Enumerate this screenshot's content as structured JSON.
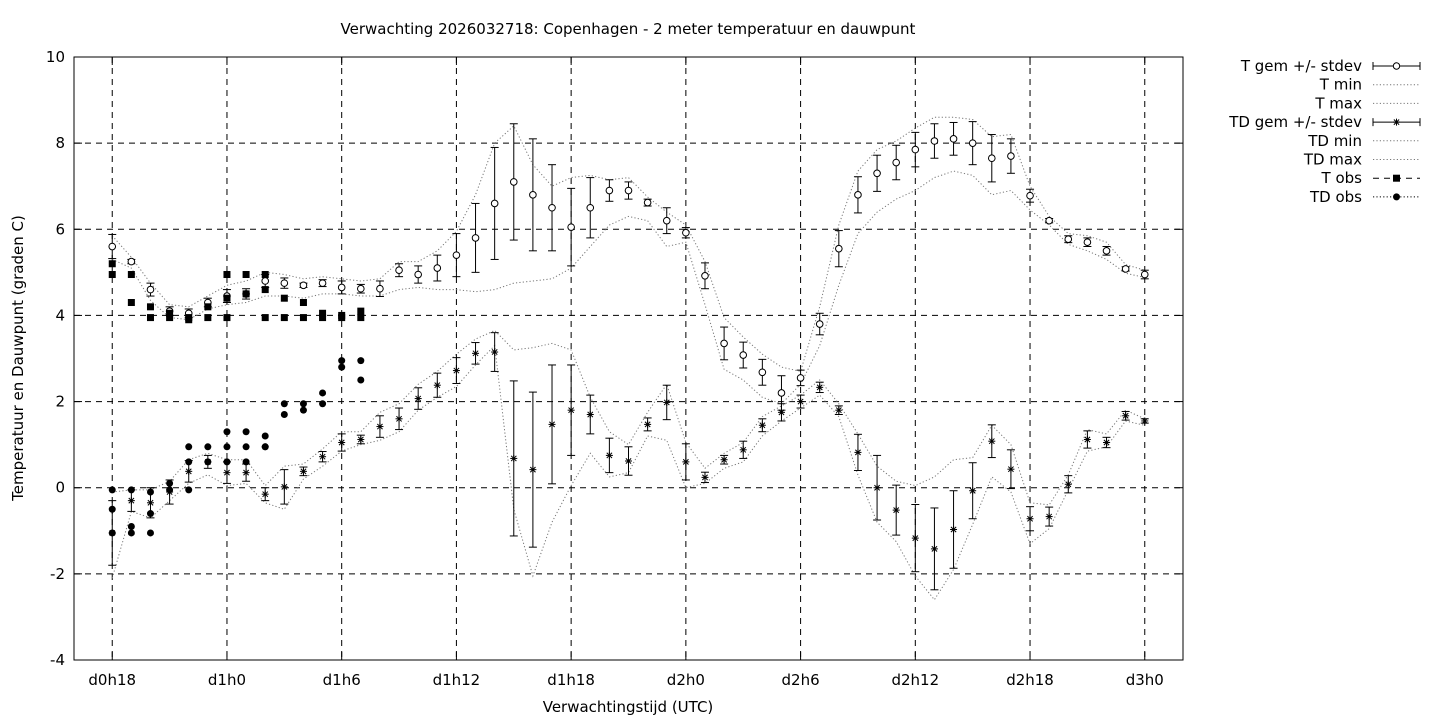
{
  "chart_data": {
    "type": "line",
    "title": "Verwachting 2026032718: Copenhagen - 2 meter temperatuur en dauwpunt",
    "xlabel": "Verwachtingstijd (UTC)",
    "ylabel": "Temperatuur en Dauwpunt (graden C)",
    "ylim": [
      -4,
      10
    ],
    "yticks": [
      "-4",
      "-2",
      "0",
      "2",
      "4",
      "6",
      "8",
      "10"
    ],
    "ytick_values": [
      -4,
      -2,
      0,
      2,
      4,
      6,
      8,
      10
    ],
    "xticks": [
      "d0h18",
      "d1h0",
      "d1h6",
      "d1h12",
      "d1h18",
      "d2h0",
      "d2h6",
      "d2h12",
      "d2h18",
      "d3h0"
    ],
    "xtick_hours": [
      18,
      24,
      30,
      36,
      42,
      48,
      54,
      60,
      66,
      72
    ],
    "xlim_hours": [
      16,
      74
    ],
    "grid": true,
    "legend_position": "outside-top-right",
    "series": [
      {
        "name": "T gem +/- stdev",
        "style": "open-circle-errorbar",
        "x": [
          18,
          19,
          20,
          21,
          22,
          23,
          24,
          25,
          26,
          27,
          28,
          29,
          30,
          31,
          32,
          33,
          34,
          35,
          36,
          37,
          38,
          39,
          40,
          41,
          42,
          43,
          44,
          45,
          46,
          47,
          48,
          49,
          50,
          51,
          52,
          53,
          54,
          55,
          56,
          57,
          58,
          59,
          60,
          61,
          62,
          63,
          64,
          65,
          66,
          67,
          68,
          69,
          70,
          71,
          72
        ],
        "y": [
          5.6,
          5.25,
          4.6,
          4.1,
          4.05,
          4.3,
          4.45,
          4.5,
          4.8,
          4.75,
          4.7,
          4.75,
          4.65,
          4.62,
          4.62,
          5.05,
          4.95,
          5.1,
          5.4,
          5.8,
          6.6,
          7.1,
          6.8,
          6.5,
          6.05,
          6.5,
          6.9,
          6.9,
          6.62,
          6.2,
          5.92,
          4.92,
          3.35,
          3.08,
          2.68,
          2.2,
          2.55,
          3.8,
          5.55,
          6.8,
          7.3,
          7.55,
          7.85,
          8.05,
          8.1,
          8.0,
          7.65,
          7.7,
          6.78,
          6.2,
          5.77,
          5.7,
          5.5,
          5.08,
          4.95
        ],
        "stdev": [
          0.28,
          0.05,
          0.15,
          0.1,
          0.1,
          0.1,
          0.15,
          0.12,
          0.15,
          0.12,
          0.05,
          0.08,
          0.15,
          0.1,
          0.18,
          0.15,
          0.2,
          0.3,
          0.5,
          0.8,
          1.3,
          1.35,
          1.3,
          1.0,
          0.9,
          0.7,
          0.25,
          0.2,
          0.08,
          0.3,
          0.12,
          0.3,
          0.38,
          0.3,
          0.3,
          0.4,
          0.18,
          0.25,
          0.42,
          0.42,
          0.42,
          0.4,
          0.4,
          0.4,
          0.38,
          0.5,
          0.55,
          0.4,
          0.15,
          0.05,
          0.08,
          0.1,
          0.1,
          0.05,
          0.1
        ]
      },
      {
        "name": "T min",
        "style": "dotted-line",
        "x": [
          18,
          19,
          20,
          21,
          22,
          23,
          24,
          25,
          26,
          27,
          28,
          29,
          30,
          31,
          32,
          33,
          34,
          35,
          36,
          37,
          38,
          39,
          40,
          41,
          42,
          43,
          44,
          45,
          46,
          47,
          48,
          49,
          50,
          51,
          52,
          53,
          54,
          55,
          56,
          57,
          58,
          59,
          60,
          61,
          62,
          63,
          64,
          65,
          66,
          67,
          68,
          69,
          70,
          71,
          72
        ],
        "y": [
          5.3,
          5.1,
          4.35,
          3.95,
          3.9,
          4.15,
          4.25,
          4.3,
          4.45,
          4.45,
          4.4,
          4.5,
          4.5,
          4.45,
          4.45,
          4.6,
          4.65,
          4.6,
          4.6,
          4.55,
          4.6,
          4.75,
          4.8,
          4.85,
          5.1,
          5.6,
          6.1,
          6.3,
          6.2,
          5.6,
          5.7,
          4.25,
          2.75,
          2.5,
          2.1,
          1.95,
          2.4,
          3.3,
          4.7,
          5.9,
          6.4,
          6.7,
          6.9,
          7.2,
          7.35,
          7.25,
          6.8,
          6.9,
          6.45,
          6.1,
          5.65,
          5.5,
          5.3,
          4.98,
          4.88
        ]
      },
      {
        "name": "T max",
        "style": "dotted-line",
        "x": [
          18,
          19,
          20,
          21,
          22,
          23,
          24,
          25,
          26,
          27,
          28,
          29,
          30,
          31,
          32,
          33,
          34,
          35,
          36,
          37,
          38,
          39,
          40,
          41,
          42,
          43,
          44,
          45,
          46,
          47,
          48,
          49,
          50,
          51,
          52,
          53,
          54,
          55,
          56,
          57,
          58,
          59,
          60,
          61,
          62,
          63,
          64,
          65,
          66,
          67,
          68,
          69,
          70,
          71,
          72
        ],
        "y": [
          5.85,
          5.35,
          4.75,
          4.25,
          4.2,
          4.45,
          4.7,
          4.8,
          5.0,
          4.95,
          4.85,
          4.9,
          4.85,
          4.8,
          4.85,
          5.25,
          5.25,
          5.5,
          5.95,
          6.8,
          8.0,
          8.4,
          7.5,
          7.0,
          7.2,
          7.25,
          7.15,
          7.2,
          6.75,
          6.4,
          6.1,
          5.25,
          3.95,
          3.5,
          3.1,
          2.8,
          2.7,
          4.2,
          6.1,
          7.35,
          7.85,
          8.05,
          8.35,
          8.6,
          8.6,
          8.55,
          8.15,
          8.2,
          7.0,
          6.3,
          5.9,
          5.85,
          5.7,
          5.18,
          5.05
        ]
      },
      {
        "name": "TD gem +/- stdev",
        "style": "star-errorbar",
        "x": [
          18,
          19,
          20,
          21,
          22,
          23,
          24,
          25,
          26,
          27,
          28,
          29,
          30,
          31,
          32,
          33,
          34,
          35,
          36,
          37,
          38,
          39,
          40,
          41,
          42,
          43,
          44,
          45,
          46,
          47,
          48,
          49,
          50,
          51,
          52,
          53,
          54,
          55,
          56,
          57,
          58,
          59,
          60,
          61,
          62,
          63,
          64,
          65,
          66,
          67,
          68,
          69,
          70,
          71,
          72
        ],
        "y": [
          -1.05,
          -0.3,
          -0.35,
          -0.1,
          0.38,
          0.6,
          0.35,
          0.35,
          -0.15,
          0.02,
          0.38,
          0.72,
          1.05,
          1.12,
          1.42,
          1.6,
          2.07,
          2.38,
          2.72,
          3.12,
          3.15,
          0.68,
          0.42,
          1.47,
          1.8,
          1.7,
          0.75,
          0.62,
          1.47,
          1.98,
          0.6,
          0.24,
          0.65,
          0.88,
          1.45,
          1.75,
          2.0,
          2.33,
          1.8,
          0.82,
          0.0,
          -0.52,
          -1.17,
          -1.42,
          -0.97,
          -0.07,
          1.08,
          0.43,
          -0.72,
          -0.67,
          0.08,
          1.12,
          1.05,
          1.67,
          1.55
        ],
        "stdev": [
          0.75,
          0.25,
          0.35,
          0.28,
          0.25,
          0.15,
          0.25,
          0.2,
          0.15,
          0.4,
          0.1,
          0.12,
          0.2,
          0.1,
          0.25,
          0.25,
          0.25,
          0.28,
          0.3,
          0.25,
          0.45,
          1.8,
          1.8,
          1.38,
          1.05,
          0.45,
          0.4,
          0.33,
          0.15,
          0.4,
          0.42,
          0.12,
          0.1,
          0.2,
          0.15,
          0.2,
          0.15,
          0.12,
          0.1,
          0.42,
          0.75,
          0.58,
          0.78,
          0.95,
          0.9,
          0.65,
          0.38,
          0.45,
          0.28,
          0.22,
          0.2,
          0.2,
          0.12,
          0.1,
          0.05
        ]
      },
      {
        "name": "TD min",
        "style": "dotted-line",
        "x": [
          18,
          19,
          20,
          21,
          22,
          23,
          24,
          25,
          26,
          27,
          28,
          29,
          30,
          31,
          32,
          33,
          34,
          35,
          36,
          37,
          38,
          39,
          40,
          41,
          42,
          43,
          44,
          45,
          46,
          47,
          48,
          49,
          50,
          51,
          52,
          53,
          54,
          55,
          56,
          57,
          58,
          59,
          60,
          61,
          62,
          63,
          64,
          65,
          66,
          67,
          68,
          69,
          70,
          71,
          72
        ],
        "y": [
          -2.1,
          -0.55,
          -0.7,
          -0.3,
          0.1,
          0.3,
          0.05,
          0.1,
          -0.35,
          -0.5,
          0.2,
          0.5,
          0.85,
          1.0,
          1.1,
          1.3,
          1.8,
          2.1,
          2.35,
          2.85,
          3.3,
          -0.5,
          -2.05,
          -0.8,
          0.05,
          0.8,
          0.25,
          0.35,
          1.2,
          1.1,
          0.0,
          0.1,
          0.45,
          0.6,
          1.2,
          1.55,
          1.85,
          2.15,
          1.65,
          0.3,
          -0.8,
          -1.25,
          -2.05,
          -2.6,
          -1.9,
          -0.85,
          0.25,
          -0.1,
          -1.3,
          -0.95,
          -0.05,
          0.85,
          0.95,
          1.55,
          1.45
        ]
      },
      {
        "name": "TD max",
        "style": "dotted-line",
        "x": [
          18,
          19,
          20,
          21,
          22,
          23,
          24,
          25,
          26,
          27,
          28,
          29,
          30,
          31,
          32,
          33,
          34,
          35,
          36,
          37,
          38,
          39,
          40,
          41,
          42,
          43,
          44,
          45,
          46,
          47,
          48,
          49,
          50,
          51,
          52,
          53,
          54,
          55,
          56,
          57,
          58,
          59,
          60,
          61,
          62,
          63,
          64,
          65,
          66,
          67,
          68,
          69,
          70,
          71,
          72
        ],
        "y": [
          -0.1,
          -0.05,
          -0.05,
          0.15,
          0.65,
          0.8,
          0.65,
          0.65,
          0.05,
          0.5,
          0.55,
          0.9,
          1.3,
          1.3,
          1.75,
          1.95,
          2.4,
          2.7,
          3.1,
          3.45,
          3.65,
          3.2,
          3.25,
          3.35,
          3.2,
          2.1,
          1.3,
          1.0,
          1.75,
          2.4,
          1.05,
          0.45,
          0.8,
          1.05,
          1.65,
          1.9,
          2.15,
          2.5,
          1.95,
          1.25,
          0.5,
          0.15,
          0.05,
          0.25,
          0.65,
          0.7,
          1.45,
          1.0,
          -0.35,
          -0.4,
          0.3,
          1.35,
          1.25,
          1.8,
          1.6
        ]
      },
      {
        "name": "T obs",
        "style": "filled-square",
        "x": [
          18,
          18,
          19,
          19,
          20,
          20,
          21,
          21,
          22,
          22,
          23,
          23,
          24,
          24,
          24,
          25,
          25,
          26,
          26,
          26,
          27,
          27,
          28,
          28,
          29,
          29,
          30,
          30,
          31,
          31
        ],
        "y": [
          5.2,
          4.95,
          4.95,
          4.3,
          4.2,
          3.95,
          4.05,
          3.95,
          3.95,
          3.9,
          4.2,
          3.95,
          4.95,
          4.4,
          3.95,
          4.95,
          4.5,
          4.95,
          4.6,
          3.95,
          4.4,
          3.95,
          4.3,
          3.95,
          4.05,
          3.95,
          3.95,
          4.0,
          4.1,
          3.95
        ]
      },
      {
        "name": "TD obs",
        "style": "filled-circle",
        "x": [
          18,
          18,
          18,
          19,
          19,
          19,
          20,
          20,
          20,
          21,
          21,
          22,
          22,
          22,
          23,
          23,
          24,
          24,
          24,
          25,
          25,
          25,
          26,
          26,
          26,
          27,
          27,
          28,
          28,
          29,
          29,
          30,
          30,
          31,
          31
        ],
        "y": [
          -0.05,
          -0.5,
          -1.05,
          -0.05,
          -0.9,
          -1.05,
          -0.1,
          -0.6,
          -1.05,
          0.1,
          -0.05,
          0.95,
          0.6,
          -0.05,
          0.95,
          0.6,
          1.3,
          0.95,
          0.6,
          1.3,
          0.95,
          0.6,
          1.2,
          0.95,
          0.95,
          1.95,
          1.7,
          1.95,
          1.8,
          2.2,
          1.95,
          2.95,
          2.8,
          2.95,
          2.5
        ]
      }
    ]
  }
}
